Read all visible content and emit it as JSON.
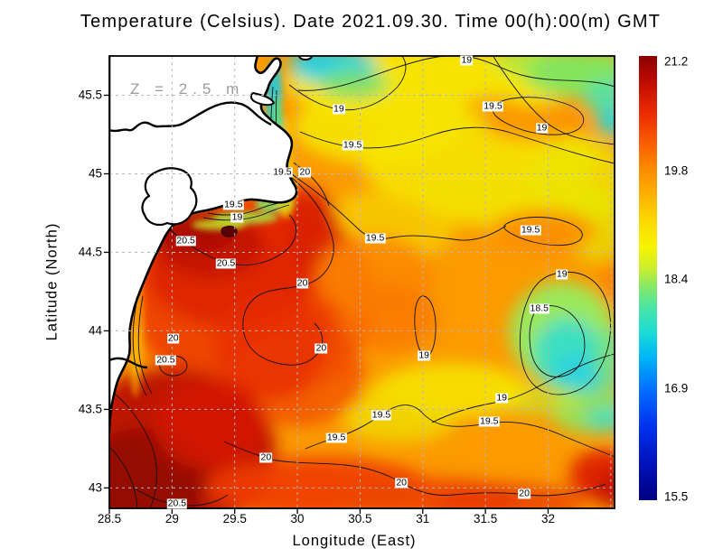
{
  "title": "Temperature (Celsius). Date 2021.09.30. Time 00(h):00(m) GMT",
  "annotation": "Z = 2.5 m",
  "axes": {
    "x": {
      "label": "Longitude (East)",
      "tick_values": [
        28.5,
        29,
        29.5,
        30,
        30.5,
        31,
        31.5,
        32
      ],
      "tick_labels": [
        "28.5",
        "29",
        "29.5",
        "30",
        "30.5",
        "31",
        "31.5",
        "32"
      ],
      "grid_values": [
        29,
        29.5,
        30,
        30.5,
        31,
        31.5,
        32,
        32.5
      ]
    },
    "y": {
      "label": "Latitude (North)",
      "tick_values": [
        43,
        43.5,
        44,
        44.5,
        45,
        45.5
      ],
      "tick_labels": [
        "43",
        "43.5",
        "44",
        "44.5",
        "45",
        "45.5"
      ],
      "grid_values": [
        43,
        43.5,
        44,
        44.5,
        45,
        45.5
      ]
    }
  },
  "colorbar": {
    "min": 15.5,
    "max": 21.2,
    "tick_labels": [
      "21.2",
      "19.8",
      "18.4",
      "16.9",
      "15.5"
    ],
    "gradient_top_to_bottom": [
      [
        "0%",
        "#8a0000"
      ],
      [
        "6%",
        "#c00c00"
      ],
      [
        "13%",
        "#ec2c00"
      ],
      [
        "20%",
        "#fb6000"
      ],
      [
        "25%",
        "#fc8800"
      ],
      [
        "31%",
        "#feb000"
      ],
      [
        "37%",
        "#fbd800"
      ],
      [
        "43%",
        "#f8f400"
      ],
      [
        "48%",
        "#c8ee30"
      ],
      [
        "52%",
        "#84e868"
      ],
      [
        "57%",
        "#46e4a8"
      ],
      [
        "62%",
        "#1cdcd4"
      ],
      [
        "68%",
        "#00b4f8"
      ],
      [
        "75%",
        "#0070ff"
      ],
      [
        "83%",
        "#0034f0"
      ],
      [
        "91%",
        "#0014c0"
      ],
      [
        "100%",
        "#000080"
      ]
    ]
  },
  "chart_data": {
    "type": "heatmap",
    "title": "Temperature (Celsius). Date 2021.09.30. Time 00(h):00(m) GMT",
    "xlabel": "Longitude (East)",
    "ylabel": "Latitude (North)",
    "xlim": [
      28.5,
      32.53
    ],
    "ylim": [
      42.87,
      45.75
    ],
    "value_range_celsius": [
      15.5,
      21.2
    ],
    "depth_annotation": "Z = 2.5 m",
    "grid_step_deg": 0.5,
    "contour_interval_celsius": 0.5,
    "contour_levels_labeled": [
      18.5,
      19,
      19.5,
      20,
      20.5
    ],
    "contour_labels": [
      {
        "level": "19",
        "lon": 31.35,
        "lat": 45.72
      },
      {
        "level": "19",
        "lon": 30.33,
        "lat": 45.41
      },
      {
        "level": "19.5",
        "lon": 31.56,
        "lat": 45.43
      },
      {
        "level": "19",
        "lon": 31.95,
        "lat": 45.29
      },
      {
        "level": "19.5",
        "lon": 30.44,
        "lat": 45.18
      },
      {
        "level": "19.5",
        "lon": 29.88,
        "lat": 45.01
      },
      {
        "level": "20",
        "lon": 30.06,
        "lat": 45.01
      },
      {
        "level": "19.5",
        "lon": 29.49,
        "lat": 44.8
      },
      {
        "level": "19",
        "lon": 29.52,
        "lat": 44.72
      },
      {
        "level": "20.5",
        "lon": 29.11,
        "lat": 44.57
      },
      {
        "level": "20.5",
        "lon": 29.43,
        "lat": 44.43
      },
      {
        "level": "19.5",
        "lon": 30.62,
        "lat": 44.59
      },
      {
        "level": "19.5",
        "lon": 31.86,
        "lat": 44.64
      },
      {
        "level": "20",
        "lon": 30.04,
        "lat": 44.3
      },
      {
        "level": "19",
        "lon": 32.11,
        "lat": 44.36
      },
      {
        "level": "18.5",
        "lon": 31.93,
        "lat": 44.14
      },
      {
        "level": "20",
        "lon": 29.01,
        "lat": 43.95
      },
      {
        "level": "20",
        "lon": 30.19,
        "lat": 43.89
      },
      {
        "level": "20.5",
        "lon": 28.95,
        "lat": 43.81
      },
      {
        "level": "19",
        "lon": 31.01,
        "lat": 43.84
      },
      {
        "level": "19",
        "lon": 31.63,
        "lat": 43.57
      },
      {
        "level": "19.5",
        "lon": 30.67,
        "lat": 43.46
      },
      {
        "level": "19.5",
        "lon": 31.53,
        "lat": 43.42
      },
      {
        "level": "19.5",
        "lon": 30.31,
        "lat": 43.32
      },
      {
        "level": "20",
        "lon": 29.75,
        "lat": 43.19
      },
      {
        "level": "20",
        "lon": 30.83,
        "lat": 43.03
      },
      {
        "level": "20",
        "lon": 31.81,
        "lat": 42.96
      },
      {
        "level": "20.5",
        "lon": 29.04,
        "lat": 42.9
      }
    ],
    "field_description": "Sea temperature at 2.5 m depth, western Black Sea: warmest water (20.5-21.2 C, dark red) along the southwest coast and lower-left; cooler patches (18.4-19 C, green/cyan) near the Danube delta, upper-right and mid-right; ~19.3-19.6 C (yellow) across the upper mid-basin; land shown in white on the left."
  }
}
